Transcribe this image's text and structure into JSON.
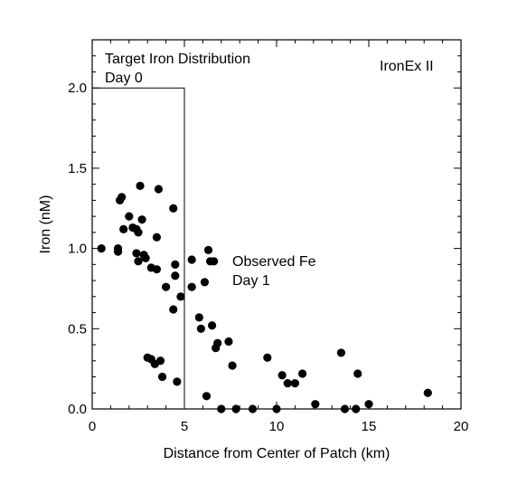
{
  "chart_data": {
    "type": "scatter",
    "xlabel": "Distance from Center of Patch (km)",
    "ylabel": "Iron (nM)",
    "xlim": [
      0,
      20
    ],
    "ylim": [
      0,
      2.3
    ],
    "x_ticks": [
      "0",
      "5",
      "10",
      "15",
      "20"
    ],
    "y_ticks": [
      "0.0",
      "0.5",
      "1.0",
      "1.5",
      "2.0"
    ],
    "grid": false,
    "annotations": {
      "corner_label": "IronEx II",
      "target_line1": "Target Iron Distribution",
      "target_line2": "Day 0",
      "observed_line1": "Observed Fe",
      "observed_line2": "Day 1"
    },
    "target_distribution": {
      "x": [
        0,
        5,
        5
      ],
      "y": [
        2.0,
        2.0,
        0
      ]
    },
    "points": [
      [
        0.5,
        1.0
      ],
      [
        1.4,
        0.98
      ],
      [
        1.4,
        1.0
      ],
      [
        1.5,
        1.3
      ],
      [
        1.6,
        1.32
      ],
      [
        1.7,
        1.12
      ],
      [
        2.0,
        1.2
      ],
      [
        2.2,
        1.13
      ],
      [
        2.4,
        1.12
      ],
      [
        2.4,
        0.97
      ],
      [
        2.5,
        1.1
      ],
      [
        2.5,
        0.92
      ],
      [
        2.6,
        1.39
      ],
      [
        2.7,
        1.18
      ],
      [
        2.8,
        0.96
      ],
      [
        2.9,
        0.94
      ],
      [
        3.0,
        0.32
      ],
      [
        3.2,
        0.88
      ],
      [
        3.2,
        0.31
      ],
      [
        3.4,
        0.28
      ],
      [
        3.5,
        1.07
      ],
      [
        3.5,
        0.87
      ],
      [
        3.6,
        1.37
      ],
      [
        3.7,
        0.3
      ],
      [
        3.8,
        0.2
      ],
      [
        4.0,
        0.76
      ],
      [
        4.4,
        1.25
      ],
      [
        4.4,
        0.62
      ],
      [
        4.5,
        0.9
      ],
      [
        4.5,
        0.83
      ],
      [
        4.6,
        0.17
      ],
      [
        4.8,
        0.7
      ],
      [
        5.4,
        0.76
      ],
      [
        5.4,
        0.93
      ],
      [
        5.8,
        0.57
      ],
      [
        5.9,
        0.5
      ],
      [
        6.1,
        0.79
      ],
      [
        6.2,
        0.08
      ],
      [
        6.3,
        0.99
      ],
      [
        6.4,
        0.92
      ],
      [
        6.5,
        0.52
      ],
      [
        6.6,
        0.92
      ],
      [
        6.7,
        0.38
      ],
      [
        6.8,
        0.41
      ],
      [
        7.0,
        0.0
      ],
      [
        7.4,
        0.42
      ],
      [
        7.6,
        0.27
      ],
      [
        7.8,
        0.0
      ],
      [
        8.7,
        0.0
      ],
      [
        9.5,
        0.32
      ],
      [
        10.0,
        0.0
      ],
      [
        10.3,
        0.21
      ],
      [
        10.6,
        0.16
      ],
      [
        11.0,
        0.16
      ],
      [
        11.4,
        0.22
      ],
      [
        12.1,
        0.03
      ],
      [
        13.5,
        0.35
      ],
      [
        13.7,
        0.0
      ],
      [
        14.3,
        0.0
      ],
      [
        14.4,
        0.22
      ],
      [
        15.0,
        0.03
      ],
      [
        18.2,
        0.1
      ]
    ]
  }
}
